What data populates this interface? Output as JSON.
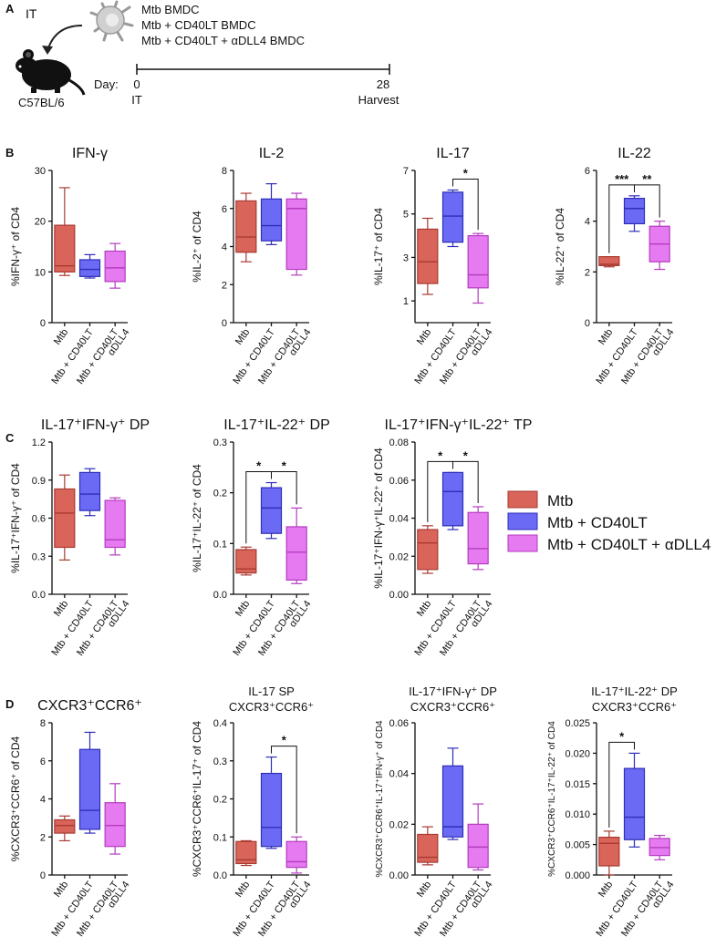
{
  "colors": {
    "mtb": "#d9645a",
    "mtb_edge": "#a83a32",
    "cd40": "#6a6af5",
    "cd40_edge": "#2e2eb8",
    "dll4": "#e67af0",
    "dll4_edge": "#b43cc0",
    "axis": "#111111",
    "legend_mtb_text": "#b5302a",
    "legend_cd40_text": "#3540b5",
    "legend_dll4_text": "#d31fd3"
  },
  "panel_a": {
    "label": "A",
    "it_label": "IT",
    "mouse_strain": "C57BL/6",
    "legend_lines": [
      "Mtb BMDC",
      "Mtb + CD40LT BMDC",
      "Mtb + CD40LT + αDLL4 BMDC"
    ],
    "timeline_label": "Day:",
    "day0": "0",
    "day0_event": "IT",
    "day28": "28",
    "day28_event": "Harvest",
    "mouse_icon": "mouse-icon",
    "cell_icon": "dendritic-cell-icon"
  },
  "legend": {
    "entries": [
      "Mtb",
      "Mtb + CD40LT",
      "Mtb + CD40LT + αDLL4"
    ]
  },
  "chart_data": [
    {
      "id": "b1",
      "type": "box",
      "panel_label": "B",
      "title": [
        "IFN-γ"
      ],
      "ylabel": "%IFN-γ⁺ of CD4",
      "ylim": [
        0,
        30
      ],
      "ticks": [
        0,
        10,
        20,
        30
      ],
      "categories": [
        "Mtb",
        "Mtb + CD40LT",
        "Mtb + CD40LT αDLL4"
      ],
      "boxes": [
        {
          "min": 9.3,
          "q1": 10.0,
          "median": 11.2,
          "q3": 19.2,
          "max": 26.6
        },
        {
          "min": 8.8,
          "q1": 9.1,
          "median": 10.5,
          "q3": 12.4,
          "max": 13.4
        },
        {
          "min": 6.8,
          "q1": 8.1,
          "median": 10.8,
          "q3": 14.1,
          "max": 15.6
        }
      ],
      "significance": []
    },
    {
      "id": "b2",
      "type": "box",
      "title": [
        "IL-2"
      ],
      "ylabel": "%IL-2⁺ of CD4",
      "ylim": [
        0,
        8
      ],
      "ticks": [
        0,
        2,
        4,
        6,
        8
      ],
      "categories": [
        "Mtb",
        "Mtb + CD40LT",
        "Mtb + CD40LT αDLL4"
      ],
      "boxes": [
        {
          "min": 3.2,
          "q1": 3.7,
          "median": 4.5,
          "q3": 6.4,
          "max": 6.8
        },
        {
          "min": 4.1,
          "q1": 4.3,
          "median": 5.1,
          "q3": 6.5,
          "max": 7.3
        },
        {
          "min": 2.5,
          "q1": 2.8,
          "median": 6.0,
          "q3": 6.5,
          "max": 6.8
        }
      ],
      "significance": []
    },
    {
      "id": "b3",
      "type": "box",
      "title": [
        "IL-17"
      ],
      "ylabel": "%IL-17⁺ of CD4",
      "ylim": [
        0,
        7
      ],
      "ticks": [
        1,
        3,
        5,
        7
      ],
      "categories": [
        "Mtb",
        "Mtb + CD40LT",
        "Mtb + CD40LT αDLL4"
      ],
      "boxes": [
        {
          "min": 1.3,
          "q1": 1.8,
          "median": 2.8,
          "q3": 4.3,
          "max": 4.8
        },
        {
          "min": 3.5,
          "q1": 3.7,
          "median": 4.9,
          "q3": 6.0,
          "max": 6.1
        },
        {
          "min": 0.9,
          "q1": 1.6,
          "median": 2.2,
          "q3": 4.0,
          "max": 4.1
        }
      ],
      "significance": [
        {
          "from": 1,
          "to": 2,
          "label": "*"
        }
      ]
    },
    {
      "id": "b4",
      "type": "box",
      "title": [
        "IL-22"
      ],
      "ylabel": "%IL-22⁺ of CD4",
      "ylim": [
        0,
        6
      ],
      "ticks": [
        0,
        2,
        4,
        6
      ],
      "categories": [
        "Mtb",
        "Mtb + CD40LT",
        "Mtb + CD40LT αDLL4"
      ],
      "boxes": [
        {
          "min": 2.2,
          "q1": 2.25,
          "median": 2.3,
          "q3": 2.6,
          "max": 2.6
        },
        {
          "min": 3.6,
          "q1": 3.9,
          "median": 4.5,
          "q3": 4.9,
          "max": 5.0
        },
        {
          "min": 2.1,
          "q1": 2.4,
          "median": 3.1,
          "q3": 3.8,
          "max": 4.0
        }
      ],
      "significance": [
        {
          "from": 0,
          "to": 1,
          "label": "***"
        },
        {
          "from": 1,
          "to": 2,
          "label": "**"
        }
      ]
    },
    {
      "id": "c1",
      "type": "box",
      "panel_label": "C",
      "title": [
        "IL-17⁺IFN-γ⁺ DP"
      ],
      "ylabel": "%IL-17⁺IFN-γ⁺ of CD4",
      "ylim": [
        0,
        1.2
      ],
      "ticks": [
        "0.0",
        "0.3",
        "0.6",
        "0.9",
        "1.2"
      ],
      "categories": [
        "Mtb",
        "Mtb + CD40LT",
        "Mtb + CD40LT αDLL4"
      ],
      "boxes": [
        {
          "min": 0.27,
          "q1": 0.37,
          "median": 0.64,
          "q3": 0.83,
          "max": 0.94
        },
        {
          "min": 0.62,
          "q1": 0.66,
          "median": 0.79,
          "q3": 0.96,
          "max": 0.99
        },
        {
          "min": 0.31,
          "q1": 0.37,
          "median": 0.43,
          "q3": 0.74,
          "max": 0.76
        }
      ],
      "significance": []
    },
    {
      "id": "c2",
      "type": "box",
      "title": [
        "IL-17⁺IL-22⁺ DP"
      ],
      "ylabel": "%IL-17⁺IL-22⁺ of CD4",
      "ylim": [
        0,
        0.3
      ],
      "ticks": [
        "0.0",
        "0.1",
        "0.2",
        "0.3"
      ],
      "categories": [
        "Mtb",
        "Mtb + CD40LT",
        "Mtb + CD40LT αDLL4"
      ],
      "boxes": [
        {
          "min": 0.038,
          "q1": 0.042,
          "median": 0.05,
          "q3": 0.088,
          "max": 0.093
        },
        {
          "min": 0.11,
          "q1": 0.12,
          "median": 0.17,
          "q3": 0.21,
          "max": 0.22
        },
        {
          "min": 0.021,
          "q1": 0.028,
          "median": 0.083,
          "q3": 0.133,
          "max": 0.17
        }
      ],
      "significance": [
        {
          "from": 0,
          "to": 1,
          "label": "*"
        },
        {
          "from": 1,
          "to": 2,
          "label": "*"
        }
      ]
    },
    {
      "id": "c3",
      "type": "box",
      "title": [
        "IL-17⁺IFN-γ⁺IL-22⁺ TP"
      ],
      "ylabel": "%IL-17⁺IFN-γ⁺IL-22⁺ of CD4",
      "ylim": [
        0,
        0.08
      ],
      "ticks": [
        "0.00",
        "0.02",
        "0.04",
        "0.06",
        "0.08"
      ],
      "categories": [
        "Mtb",
        "Mtb + CD40LT",
        "Mtb + CD40LT αDLL4"
      ],
      "boxes": [
        {
          "min": 0.011,
          "q1": 0.013,
          "median": 0.027,
          "q3": 0.034,
          "max": 0.036
        },
        {
          "min": 0.034,
          "q1": 0.036,
          "median": 0.054,
          "q3": 0.064,
          "max": 0.064
        },
        {
          "min": 0.013,
          "q1": 0.016,
          "median": 0.024,
          "q3": 0.043,
          "max": 0.046
        }
      ],
      "significance": [
        {
          "from": 0,
          "to": 1,
          "label": "*"
        },
        {
          "from": 1,
          "to": 2,
          "label": "*"
        }
      ]
    },
    {
      "id": "d1",
      "type": "box",
      "panel_label": "D",
      "title": [
        "CXCR3⁺CCR6⁺"
      ],
      "ylabel": "%CXCR3⁺CCR6⁺ of CD4",
      "ylim": [
        0,
        8
      ],
      "ticks": [
        0,
        2,
        4,
        6,
        8
      ],
      "categories": [
        "Mtb",
        "Mtb + CD40LT",
        "Mtb + CD40LT αDLL4"
      ],
      "boxes": [
        {
          "min": 1.8,
          "q1": 2.2,
          "median": 2.6,
          "q3": 2.9,
          "max": 3.1
        },
        {
          "min": 2.2,
          "q1": 2.4,
          "median": 3.4,
          "q3": 6.6,
          "max": 7.5
        },
        {
          "min": 1.1,
          "q1": 1.5,
          "median": 2.6,
          "q3": 3.8,
          "max": 4.8
        }
      ],
      "significance": []
    },
    {
      "id": "d2",
      "type": "box",
      "title": [
        "IL-17 SP",
        "CXCR3⁺CCR6⁺"
      ],
      "ylabel": "%CXCR3⁺CCR6⁺IL-17⁺ of CD4",
      "ylim": [
        0,
        0.4
      ],
      "ticks": [
        "0.0",
        "0.1",
        "0.2",
        "0.3",
        "0.4"
      ],
      "categories": [
        "Mtb",
        "Mtb + CD40LT",
        "Mtb + CD40LT αDLL4"
      ],
      "boxes": [
        {
          "min": 0.025,
          "q1": 0.03,
          "median": 0.04,
          "q3": 0.088,
          "max": 0.09
        },
        {
          "min": 0.07,
          "q1": 0.075,
          "median": 0.125,
          "q3": 0.267,
          "max": 0.31
        },
        {
          "min": 0.005,
          "q1": 0.02,
          "median": 0.035,
          "q3": 0.088,
          "max": 0.1
        }
      ],
      "significance": [
        {
          "from": 1,
          "to": 2,
          "label": "*"
        }
      ]
    },
    {
      "id": "d3",
      "type": "box",
      "title": [
        "IL-17⁺IFN-γ⁺ DP",
        "CXCR3⁺CCR6⁺"
      ],
      "ylabel": "%CXCR3⁺CCR6⁺IL-17⁺IFN-γ⁺ of CD4",
      "ylim": [
        0,
        0.06
      ],
      "ticks": [
        "0.00",
        "0.02",
        "0.04",
        "0.06"
      ],
      "categories": [
        "Mtb",
        "Mtb + CD40LT",
        "Mtb + CD40LT αDLL4"
      ],
      "boxes": [
        {
          "min": 0.004,
          "q1": 0.005,
          "median": 0.007,
          "q3": 0.016,
          "max": 0.019
        },
        {
          "min": 0.014,
          "q1": 0.015,
          "median": 0.019,
          "q3": 0.043,
          "max": 0.05
        },
        {
          "min": 0.002,
          "q1": 0.003,
          "median": 0.011,
          "q3": 0.02,
          "max": 0.028
        }
      ],
      "significance": []
    },
    {
      "id": "d4",
      "type": "box",
      "title": [
        "IL-17⁺IL-22⁺ DP",
        "CXCR3⁺CCR6⁺"
      ],
      "ylabel": "%CXCR3⁺CCR6⁺IL-17⁺IL-22⁺ of CD4",
      "ylim": [
        0,
        0.025
      ],
      "ticks": [
        "0.000",
        "0.005",
        "0.010",
        "0.015",
        "0.020",
        "0.025"
      ],
      "categories": [
        "Mtb",
        "Mtb + CD40LT",
        "Mtb + CD40LT αDLL4"
      ],
      "boxes": [
        {
          "min": 0.0,
          "q1": 0.0015,
          "median": 0.0052,
          "q3": 0.0062,
          "max": 0.0072
        },
        {
          "min": 0.0046,
          "q1": 0.0058,
          "median": 0.0095,
          "q3": 0.0175,
          "max": 0.02
        },
        {
          "min": 0.0025,
          "q1": 0.0032,
          "median": 0.0045,
          "q3": 0.006,
          "max": 0.0065
        }
      ],
      "significance": [
        {
          "from": 0,
          "to": 1,
          "label": "*"
        }
      ]
    }
  ]
}
